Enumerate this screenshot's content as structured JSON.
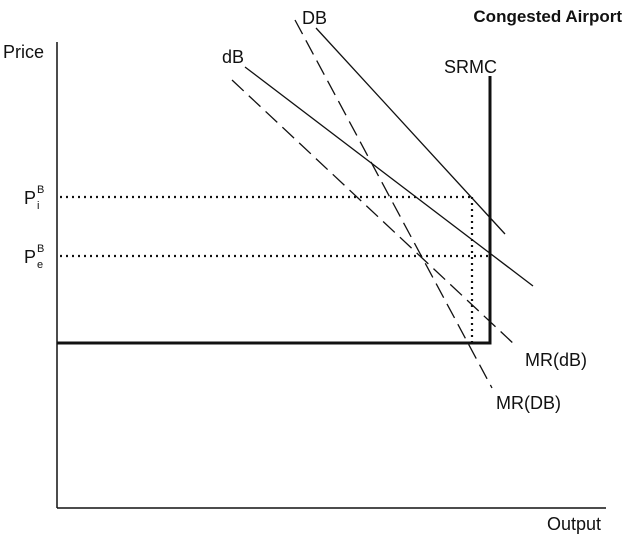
{
  "title": "Congested Airport",
  "axes": {
    "y_label": "Price",
    "x_label": "Output"
  },
  "price_levels": {
    "pi": {
      "base": "P",
      "sup": "B",
      "sub": "i"
    },
    "pe": {
      "base": "P",
      "sup": "B",
      "sub": "e"
    }
  },
  "curves": {
    "DB": "DB",
    "dB": "dB",
    "SRMC": "SRMC",
    "MR_dB": "MR(dB)",
    "MR_DB": "MR(DB)"
  }
}
